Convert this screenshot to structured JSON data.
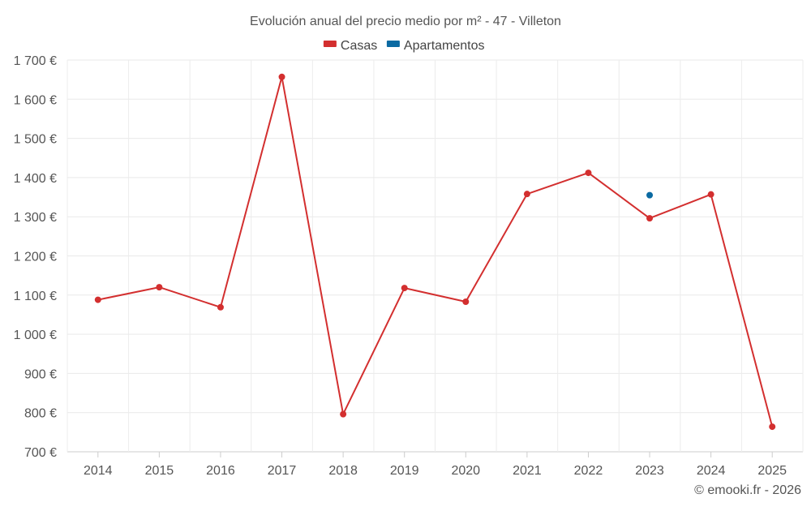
{
  "chart_data": {
    "type": "line",
    "title": "Evolución anual del precio medio por m² - 47 - Villeton",
    "categories": [
      "2014",
      "2015",
      "2016",
      "2017",
      "2018",
      "2019",
      "2020",
      "2021",
      "2022",
      "2023",
      "2024",
      "2025"
    ],
    "series": [
      {
        "name": "Casas",
        "color": "#d32f2f",
        "values": [
          1088,
          1120,
          1069,
          1657,
          796,
          1118,
          1083,
          1358,
          1412,
          1296,
          1357,
          764
        ]
      },
      {
        "name": "Apartamentos",
        "color": "#0b6aa2",
        "values": [
          null,
          null,
          null,
          null,
          null,
          null,
          null,
          null,
          null,
          1355,
          null,
          null
        ]
      }
    ],
    "ylim": [
      700,
      1700
    ],
    "yticks": [
      700,
      800,
      900,
      1000,
      1100,
      1200,
      1300,
      1400,
      1500,
      1600,
      1700
    ],
    "ytick_labels": [
      "700 €",
      "800 €",
      "900 €",
      "1 000 €",
      "1 100 €",
      "1 200 €",
      "1 300 €",
      "1 400 €",
      "1 500 €",
      "1 600 €",
      "1 700 €"
    ],
    "xlabel": "",
    "ylabel": "",
    "grid": true,
    "legend_position": "top-center",
    "credit": "© emooki.fr - 2026"
  }
}
